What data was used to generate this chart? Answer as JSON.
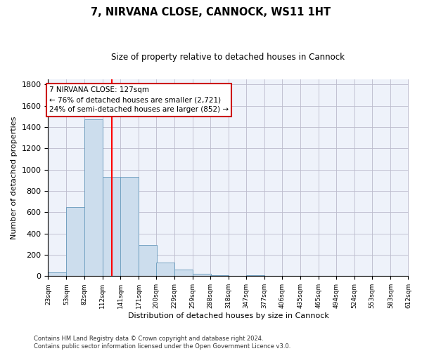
{
  "title": "7, NIRVANA CLOSE, CANNOCK, WS11 1HT",
  "subtitle": "Size of property relative to detached houses in Cannock",
  "xlabel": "Distribution of detached houses by size in Cannock",
  "ylabel": "Number of detached properties",
  "bar_color": "#ccdded",
  "bar_edge_color": "#6699bb",
  "background_color": "#eef2fa",
  "grid_color": "#bbbbcc",
  "red_line_x": 127,
  "annotation_text": "7 NIRVANA CLOSE: 127sqm\n← 76% of detached houses are smaller (2,721)\n24% of semi-detached houses are larger (852) →",
  "bin_edges": [
    23,
    53,
    82,
    112,
    141,
    171,
    200,
    229,
    259,
    288,
    318,
    347,
    377,
    406,
    435,
    465,
    494,
    524,
    553,
    583,
    612
  ],
  "bin_counts": [
    38,
    650,
    1470,
    935,
    935,
    290,
    125,
    60,
    22,
    12,
    0,
    10,
    0,
    0,
    0,
    0,
    0,
    0,
    0,
    0
  ],
  "ylim": [
    0,
    1850
  ],
  "yticks": [
    0,
    200,
    400,
    600,
    800,
    1000,
    1200,
    1400,
    1600,
    1800
  ],
  "footer_text": "Contains HM Land Registry data © Crown copyright and database right 2024.\nContains public sector information licensed under the Open Government Licence v3.0.",
  "annotation_box_color": "#ffffff",
  "annotation_box_edge_color": "#cc0000",
  "fig_width": 6.0,
  "fig_height": 5.0,
  "dpi": 100
}
